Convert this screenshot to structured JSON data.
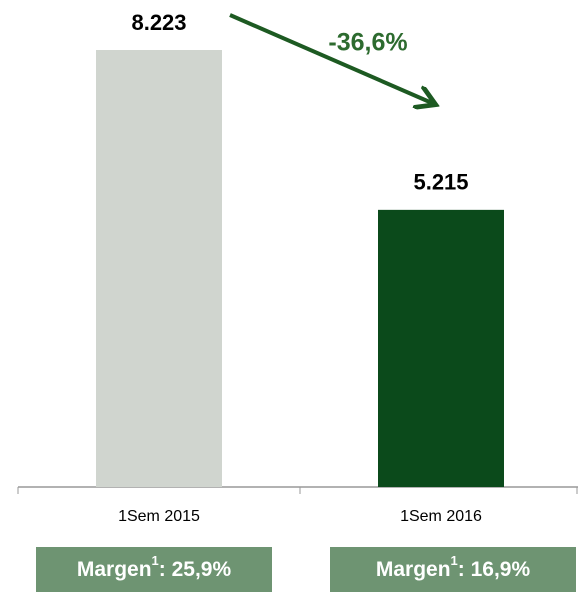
{
  "chart_data": {
    "type": "bar",
    "categories": [
      "1Sem 2015",
      "1Sem 2016"
    ],
    "values": [
      8223,
      5215
    ],
    "value_labels": [
      "8.223",
      "5.215"
    ],
    "colors": [
      "#d0d5cf",
      "#0b4a1b"
    ],
    "annotation": "-36,6%",
    "margins": [
      {
        "label": "Margen",
        "sup": "1",
        "value": ": 25,9%"
      },
      {
        "label": "Margen",
        "sup": "1",
        "value": ": 16,9%"
      }
    ]
  }
}
